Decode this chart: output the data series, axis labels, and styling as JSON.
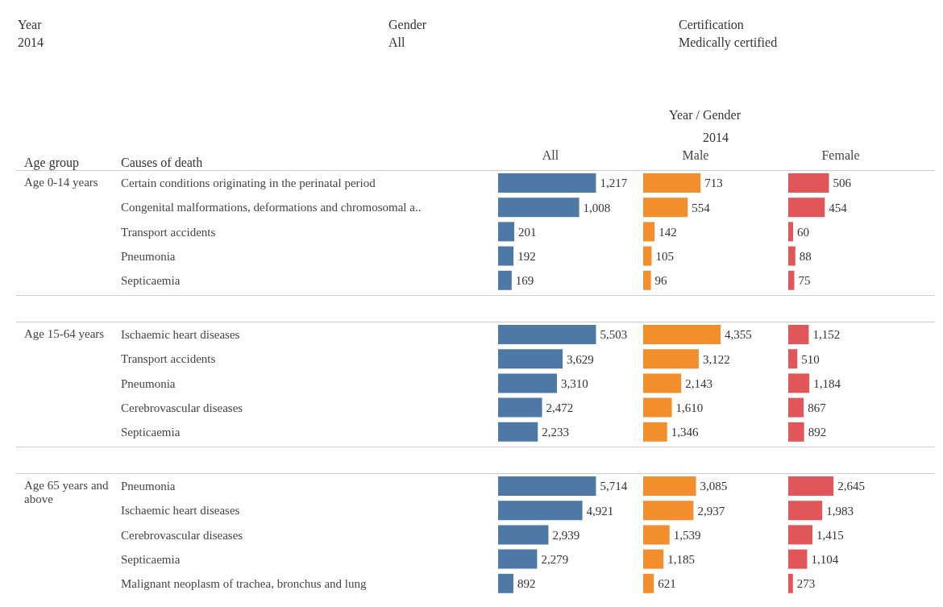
{
  "chart_data": [
    {
      "type": "bar",
      "orientation": "horizontal",
      "tick_labels": "y",
      "title": "All",
      "ylabel": "Age 0-14 years",
      "annotations": [
        "Year",
        "2014",
        "Gender",
        "All",
        "Certification",
        "Medically certified",
        "Year  /  Gender",
        "2014",
        "Age group",
        "Causes of death"
      ],
      "categories": [
        "Certain conditions originating in the perinatal period",
        "Congenital malformations, deformations and chromosomal a..",
        "Transport accidents",
        "Pneumonia",
        "Septicaemia"
      ],
      "color": "#4e79a7",
      "values": [
        1217,
        1008,
        201,
        192,
        169
      ],
      "value_labels": [
        "1,217",
        "1,008",
        "201",
        "192",
        "169"
      ]
    },
    {
      "type": "bar",
      "orientation": "horizontal",
      "tick_labels": false,
      "title": "Male",
      "color": "#f28e2b",
      "values": [
        713,
        554,
        142,
        105,
        96
      ],
      "value_labels": [
        "713",
        "554",
        "142",
        "105",
        "96"
      ]
    },
    {
      "type": "bar",
      "orientation": "horizontal",
      "tick_labels": false,
      "title": "Female",
      "color": "#e15759",
      "values": [
        506,
        454,
        60,
        88,
        75
      ],
      "value_labels": [
        "506",
        "454",
        "60",
        "88",
        "75"
      ]
    },
    {
      "type": "bar",
      "orientation": "horizontal",
      "tick_labels": "y",
      "ylabel": "Age 15-64 years",
      "categories": [
        "Ischaemic heart diseases",
        "Transport accidents",
        "Pneumonia",
        "Cerebrovascular diseases",
        "Septicaemia"
      ],
      "color": "#4e79a7",
      "values": [
        5503,
        3629,
        3310,
        2472,
        2233
      ],
      "value_labels": [
        "5,503",
        "3,629",
        "3,310",
        "2,472",
        "2,233"
      ]
    },
    {
      "type": "bar",
      "orientation": "horizontal",
      "tick_labels": false,
      "color": "#f28e2b",
      "values": [
        4355,
        3122,
        2143,
        1610,
        1346
      ],
      "value_labels": [
        "4,355",
        "3,122",
        "2,143",
        "1,610",
        "1,346"
      ]
    },
    {
      "type": "bar",
      "orientation": "horizontal",
      "tick_labels": false,
      "color": "#e15759",
      "values": [
        1152,
        510,
        1184,
        867,
        892
      ],
      "value_labels": [
        "1,152",
        "510",
        "1,184",
        "867",
        "892"
      ]
    },
    {
      "type": "bar",
      "orientation": "horizontal",
      "tick_labels": "y",
      "ylabel": "Age 65 years and above",
      "categories": [
        "Pneumonia",
        "Ischaemic heart diseases",
        "Cerebrovascular diseases",
        "Septicaemia",
        "Malignant neoplasm of trachea, bronchus and lung"
      ],
      "color": "#4e79a7",
      "values": [
        5714,
        4921,
        2939,
        2279,
        892
      ],
      "value_labels": [
        "5,714",
        "4,921",
        "2,939",
        "2,279",
        "892"
      ]
    },
    {
      "type": "bar",
      "orientation": "horizontal",
      "tick_labels": false,
      "color": "#f28e2b",
      "values": [
        3085,
        2937,
        1539,
        1185,
        621
      ],
      "value_labels": [
        "3,085",
        "2,937",
        "1,539",
        "1,185",
        "621"
      ]
    },
    {
      "type": "bar",
      "orientation": "horizontal",
      "tick_labels": false,
      "color": "#e15759",
      "values": [
        2645,
        1983,
        1415,
        1104,
        273
      ],
      "value_labels": [
        "2,645",
        "1,983",
        "1,415",
        "1,104",
        "273"
      ]
    }
  ]
}
